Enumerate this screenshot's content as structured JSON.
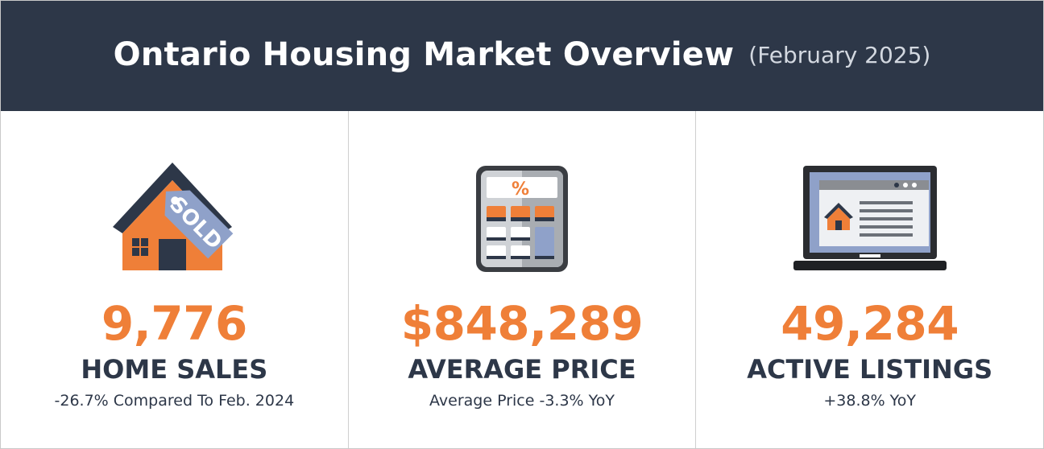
{
  "header": {
    "title": "Ontario Housing Market Overview",
    "subtitle": "(February 2025)"
  },
  "icon_text": {
    "sold_tag": "SOLD",
    "percent_key": "%"
  },
  "colors": {
    "header_bg": "#2d3748",
    "accent": "#ef7f38",
    "dark_text": "#2d3748",
    "tag_blue": "#8fa1c9"
  },
  "panels": [
    {
      "icon": "house-sold-icon",
      "value": "9,776",
      "label": "HOME SALES",
      "note": "-26.7% Compared To Feb. 2024"
    },
    {
      "icon": "calculator-icon",
      "value": "$848,289",
      "label": "AVERAGE PRICE",
      "note": "Average Price -3.3% YoY"
    },
    {
      "icon": "laptop-listing-icon",
      "value": "49,284",
      "label": "ACTIVE LISTINGS",
      "note": "+38.8% YoY"
    }
  ]
}
